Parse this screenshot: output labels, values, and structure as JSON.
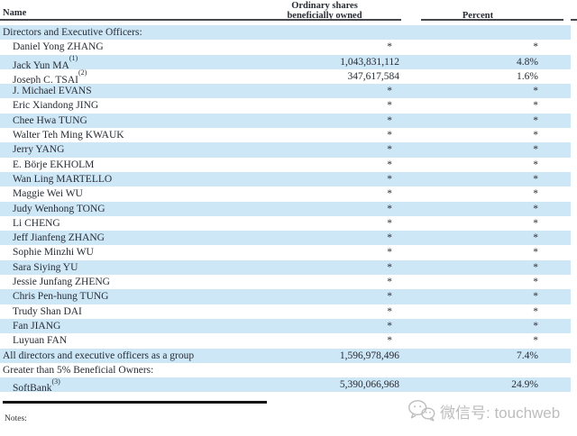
{
  "header": {
    "name_label": "Name",
    "shares_label_line1": "Ordinary shares",
    "shares_label_line2": "beneficially owned",
    "percent_label": "Percent"
  },
  "rows": [
    {
      "type": "section",
      "name": "Directors and Executive Officers:",
      "sup": "",
      "shares": "",
      "percent": ""
    },
    {
      "type": "person",
      "name": "Daniel Yong ZHANG",
      "sup": "",
      "shares": "*",
      "percent": "*"
    },
    {
      "type": "person",
      "name": "Jack Yun MA",
      "sup": "(1)",
      "shares": "1,043,831,112",
      "percent": "4.8%"
    },
    {
      "type": "person",
      "name": "Joseph C. TSAI",
      "sup": "(2)",
      "shares": "347,617,584",
      "percent": "1.6%"
    },
    {
      "type": "person",
      "name": "J. Michael EVANS",
      "sup": "",
      "shares": "*",
      "percent": "*"
    },
    {
      "type": "person",
      "name": "Eric Xiandong JING",
      "sup": "",
      "shares": "*",
      "percent": "*"
    },
    {
      "type": "person",
      "name": "Chee Hwa TUNG",
      "sup": "",
      "shares": "*",
      "percent": "*"
    },
    {
      "type": "person",
      "name": "Walter Teh Ming KWAUK",
      "sup": "",
      "shares": "*",
      "percent": "*"
    },
    {
      "type": "person",
      "name": "Jerry YANG",
      "sup": "",
      "shares": "*",
      "percent": "*"
    },
    {
      "type": "person",
      "name": "E. Börje EKHOLM",
      "sup": "",
      "shares": "*",
      "percent": "*"
    },
    {
      "type": "person",
      "name": "Wan Ling MARTELLO",
      "sup": "",
      "shares": "*",
      "percent": "*"
    },
    {
      "type": "person",
      "name": "Maggie Wei WU",
      "sup": "",
      "shares": "*",
      "percent": "*"
    },
    {
      "type": "person",
      "name": "Judy Wenhong TONG",
      "sup": "",
      "shares": "*",
      "percent": "*"
    },
    {
      "type": "person",
      "name": "Li CHENG",
      "sup": "",
      "shares": "*",
      "percent": "*"
    },
    {
      "type": "person",
      "name": "Jeff Jianfeng ZHANG",
      "sup": "",
      "shares": "*",
      "percent": "*"
    },
    {
      "type": "person",
      "name": "Sophie Minzhi WU",
      "sup": "",
      "shares": "*",
      "percent": "*"
    },
    {
      "type": "person",
      "name": "Sara Siying YU",
      "sup": "",
      "shares": "*",
      "percent": "*"
    },
    {
      "type": "person",
      "name": "Jessie Junfang ZHENG",
      "sup": "",
      "shares": "*",
      "percent": "*"
    },
    {
      "type": "person",
      "name": "Chris Pen-hung TUNG",
      "sup": "",
      "shares": "*",
      "percent": "*"
    },
    {
      "type": "person",
      "name": "Trudy Shan DAI",
      "sup": "",
      "shares": "*",
      "percent": "*"
    },
    {
      "type": "person",
      "name": "Fan JIANG",
      "sup": "",
      "shares": "*",
      "percent": "*"
    },
    {
      "type": "person",
      "name": "Luyuan FAN",
      "sup": "",
      "shares": "*",
      "percent": "*"
    },
    {
      "type": "section",
      "name": "All directors and executive officers as a group",
      "sup": "",
      "shares": "1,596,978,496",
      "percent": "7.4%"
    },
    {
      "type": "section",
      "name": "Greater than 5% Beneficial Owners:",
      "sup": "",
      "shares": "",
      "percent": ""
    },
    {
      "type": "person",
      "name": "SoftBank",
      "sup": "(3)",
      "shares": "5,390,066,968",
      "percent": "24.9%"
    }
  ],
  "footer": {
    "notes_label": "Notes:"
  },
  "watermark": {
    "icon": "wechat-icon",
    "text": "微信号: touchweb"
  },
  "colors": {
    "row_blue": "#cde7f7",
    "rule_gray": "#45484d",
    "watermark_gray": "#bdbdbd",
    "text": "#272c34"
  }
}
